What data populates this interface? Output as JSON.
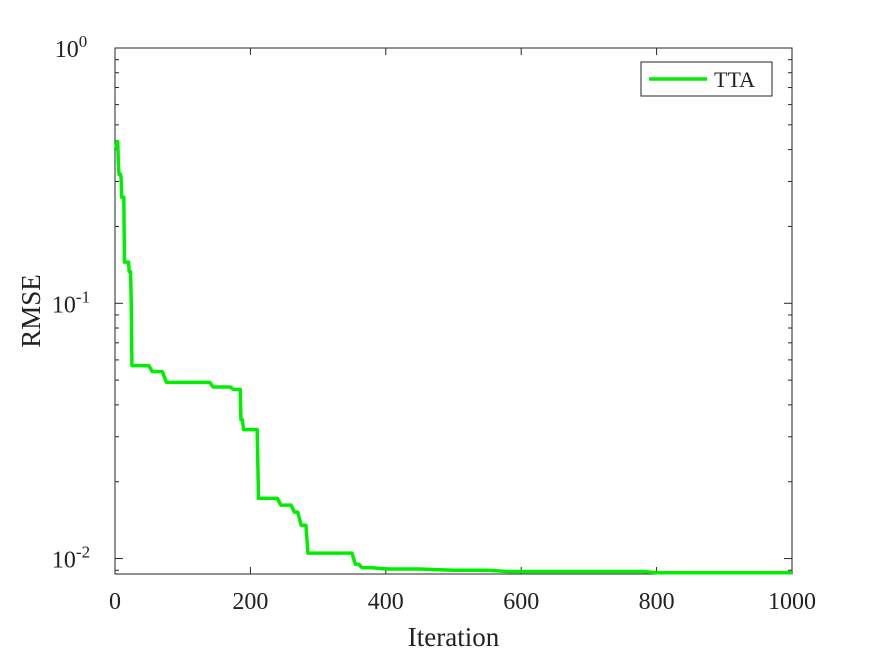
{
  "chart_data": {
    "type": "line",
    "title": "",
    "xlabel": "Iteration",
    "ylabel": "RMSE",
    "xlim": [
      0,
      1000
    ],
    "ylim": [
      0.0087,
      1
    ],
    "yscale": "log",
    "grid": false,
    "legend_position": "top-right",
    "x_ticks": [
      0,
      200,
      400,
      600,
      800,
      1000
    ],
    "y_ticks": [
      {
        "value": 1,
        "base": "10",
        "exp": "0"
      },
      {
        "value": 0.1,
        "base": "10",
        "exp": "-1"
      },
      {
        "value": 0.01,
        "base": "10",
        "exp": "-2"
      }
    ],
    "series": [
      {
        "name": "TTA",
        "color": "#00ee00",
        "x": [
          1,
          3,
          4,
          5,
          6,
          8,
          9,
          10,
          11,
          13,
          14,
          16,
          17,
          19,
          20,
          21,
          22,
          23,
          24,
          25,
          26,
          30,
          35,
          40,
          50,
          55,
          60,
          70,
          76,
          80,
          90,
          100,
          120,
          140,
          145,
          150,
          160,
          170,
          175,
          180,
          185,
          186,
          188,
          190,
          192,
          195,
          200,
          210,
          212,
          214,
          220,
          230,
          240,
          245,
          250,
          260,
          265,
          268,
          270,
          275,
          279,
          282,
          285,
          288,
          290,
          300,
          320,
          340,
          350,
          355,
          360,
          365,
          370,
          380,
          400,
          420,
          450,
          500,
          550,
          580,
          600,
          650,
          700,
          780,
          800,
          850,
          900,
          950,
          1000
        ],
        "y": [
          0.4,
          0.43,
          0.43,
          0.35,
          0.32,
          0.32,
          0.31,
          0.26,
          0.26,
          0.26,
          0.145,
          0.145,
          0.145,
          0.145,
          0.145,
          0.133,
          0.133,
          0.133,
          0.1,
          0.057,
          0.057,
          0.057,
          0.057,
          0.057,
          0.057,
          0.054,
          0.054,
          0.054,
          0.049,
          0.049,
          0.049,
          0.049,
          0.049,
          0.049,
          0.047,
          0.047,
          0.047,
          0.047,
          0.046,
          0.046,
          0.046,
          0.035,
          0.035,
          0.032,
          0.032,
          0.032,
          0.032,
          0.032,
          0.0172,
          0.0172,
          0.0172,
          0.0172,
          0.0172,
          0.0162,
          0.0162,
          0.0162,
          0.0152,
          0.0152,
          0.0152,
          0.0135,
          0.0135,
          0.0135,
          0.0105,
          0.0105,
          0.0105,
          0.0105,
          0.0105,
          0.0105,
          0.0105,
          0.0095,
          0.0095,
          0.0092,
          0.0092,
          0.0092,
          0.0091,
          0.0091,
          0.0091,
          0.009,
          0.009,
          0.0089,
          0.0089,
          0.0089,
          0.0089,
          0.0089,
          0.0088,
          0.0088,
          0.0088,
          0.0088,
          0.0088
        ]
      }
    ]
  }
}
